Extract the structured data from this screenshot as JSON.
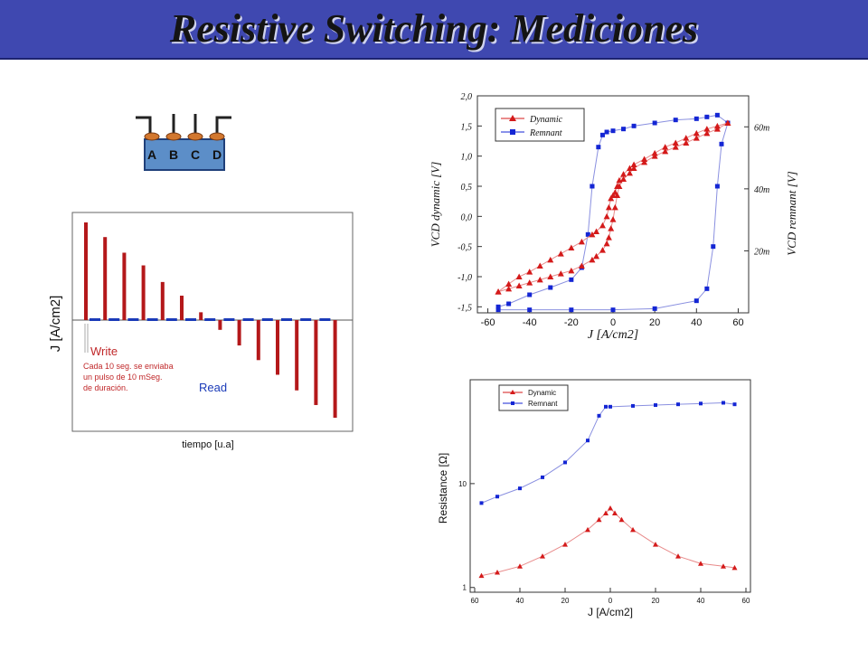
{
  "slide": {
    "title": "Resistive Switching: Mediciones"
  },
  "device": {
    "labels": [
      "A",
      "B",
      "C",
      "D"
    ]
  },
  "colors": {
    "title_bar": "#3f48b0",
    "red": "#d41a1a",
    "blue": "#1426d4",
    "bar_red": "#b4181a",
    "bar_blue": "#1a3ab8",
    "device_fill": "#5c8ec8",
    "electrode": "#d2772e"
  },
  "chart_data": [
    {
      "type": "bar",
      "title": "",
      "xlabel": "tiempo [u.a]",
      "ylabel": "J [A/cm2]",
      "grid": false,
      "annotations": {
        "read": "Read",
        "write": "Write",
        "note": [
          "Cada 10 seg. se enviaba",
          "un pulso de 10 mSeg.",
          "de duración."
        ]
      },
      "series": [
        {
          "name": "Write",
          "values": [
            1.0,
            0.85,
            0.69,
            0.56,
            0.39,
            0.25,
            0.08,
            -0.1,
            -0.26,
            -0.41,
            -0.56,
            -0.72,
            -0.87,
            -1.0
          ]
        },
        {
          "name": "Read",
          "values": [
            0.02,
            0.02,
            0.02,
            0.02,
            0.02,
            0.02,
            0.02,
            0.02,
            0.02,
            0.02,
            0.02,
            0.02,
            0.02
          ]
        }
      ]
    },
    {
      "type": "line",
      "title": "",
      "xlabel": "J [A/cm2]",
      "ylabel_left": "VCD dynamic [V]",
      "ylabel_right": "VCD remnant [V]",
      "xlim": [
        -65,
        65
      ],
      "ylim": [
        -1.6,
        2.0
      ],
      "ylim_right": [
        0,
        70
      ],
      "xticks": [
        "-60",
        "-40",
        "-20",
        "0",
        "20",
        "40",
        "60"
      ],
      "yticks": [
        "-1,5",
        "-1,0",
        "-0,5",
        "0,0",
        "0,5",
        "1,0",
        "1,5",
        "2,0"
      ],
      "yticks_right": [
        "20m",
        "40m",
        "60m"
      ],
      "legend": "top-left",
      "series": [
        {
          "name": "Dynamic",
          "x": [
            -55,
            -50,
            -45,
            -40,
            -35,
            -30,
            -25,
            -20,
            -15,
            -10,
            -8,
            -5,
            -3,
            -2,
            -1,
            0,
            1,
            2,
            3,
            5,
            8,
            10,
            15,
            20,
            25,
            30,
            35,
            40,
            45,
            50,
            55
          ],
          "y_up": [
            -1.25,
            -1.2,
            -1.15,
            -1.1,
            -1.05,
            -1.0,
            -0.95,
            -0.9,
            -0.82,
            -0.72,
            -0.66,
            -0.56,
            -0.45,
            -0.35,
            -0.2,
            -0.05,
            0.15,
            0.35,
            0.5,
            0.62,
            0.72,
            0.8,
            0.9,
            1.0,
            1.08,
            1.15,
            1.22,
            1.3,
            1.38,
            1.45,
            1.55
          ],
          "y_down": [
            -1.25,
            -1.12,
            -1.0,
            -0.92,
            -0.82,
            -0.72,
            -0.62,
            -0.52,
            -0.42,
            -0.3,
            -0.25,
            -0.15,
            0.0,
            0.15,
            0.3,
            0.35,
            0.4,
            0.5,
            0.6,
            0.7,
            0.8,
            0.86,
            0.95,
            1.05,
            1.15,
            1.22,
            1.3,
            1.38,
            1.45,
            1.5,
            1.55
          ]
        },
        {
          "name": "Remnant",
          "x_upper": [
            55,
            50,
            45,
            40,
            30,
            20,
            10,
            5,
            0,
            -3,
            -5,
            -7,
            -10
          ],
          "y_upper": [
            1.55,
            1.68,
            1.65,
            1.62,
            1.6,
            1.55,
            1.5,
            1.45,
            1.42,
            1.4,
            1.35,
            1.15,
            0.5
          ],
          "x_lower": [
            -55,
            -50,
            -40,
            -30,
            -20,
            -15,
            -12,
            -10
          ],
          "y_lower": [
            -1.5,
            -1.45,
            -1.3,
            -1.18,
            -1.05,
            -0.85,
            -0.3,
            0.5
          ],
          "x_bottom": [
            -55,
            -40,
            -20,
            0,
            20,
            40,
            45,
            48,
            50,
            52,
            55
          ],
          "y_bottom": [
            -1.55,
            -1.55,
            -1.55,
            -1.55,
            -1.53,
            -1.4,
            -1.2,
            -0.5,
            0.5,
            1.2,
            1.55
          ]
        }
      ]
    },
    {
      "type": "line",
      "title": "",
      "xlabel": "J [A/cm2]",
      "ylabel": "Resistance [Ω]",
      "xscale": "abs",
      "yscale": "log",
      "xlim": [
        -62,
        62
      ],
      "ylim": [
        0.9,
        100
      ],
      "xticks": [
        "60",
        "40",
        "20",
        "0",
        "20",
        "40",
        "60"
      ],
      "yticks": [
        "1",
        "10"
      ],
      "legend": "top-left",
      "series": [
        {
          "name": "Dynamic",
          "x": [
            -57,
            -50,
            -40,
            -30,
            -20,
            -10,
            -5,
            -2,
            0,
            2,
            5,
            10,
            20,
            30,
            40,
            50,
            55
          ],
          "y": [
            1.3,
            1.4,
            1.6,
            2.0,
            2.6,
            3.6,
            4.5,
            5.2,
            5.8,
            5.2,
            4.5,
            3.6,
            2.6,
            2.0,
            1.7,
            1.6,
            1.55
          ]
        },
        {
          "name": "Remnant",
          "x": [
            -57,
            -50,
            -40,
            -30,
            -20,
            -10,
            -5,
            -2,
            0,
            10,
            20,
            30,
            40,
            50,
            55
          ],
          "y": [
            6.5,
            7.5,
            9,
            11.5,
            16,
            26,
            45,
            55,
            55,
            56,
            57,
            58,
            59,
            60,
            58
          ]
        }
      ]
    }
  ]
}
